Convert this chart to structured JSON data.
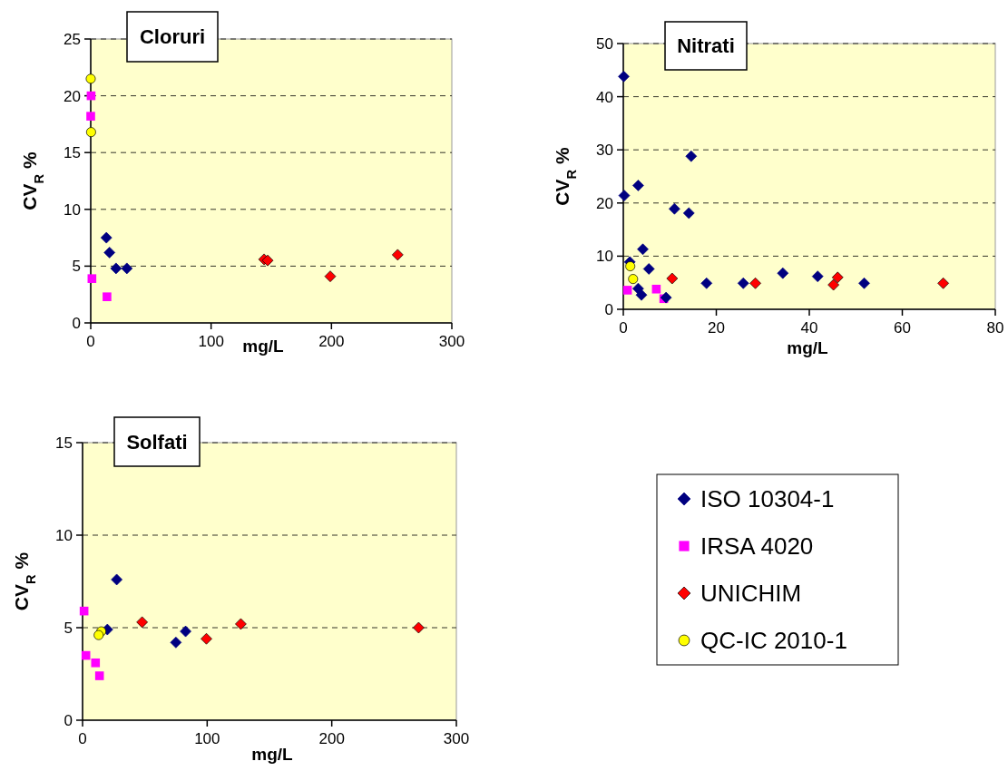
{
  "chart_data": [
    {
      "type": "scatter",
      "title": "Cloruri",
      "xlabel": "mg/L",
      "ylabel": "CV$_{R}$ %",
      "xlim": [
        0,
        300
      ],
      "xticks": [
        0,
        100,
        200,
        300
      ],
      "ylim": [
        0,
        25
      ],
      "yticks": [
        0,
        5,
        10,
        15,
        20,
        25
      ],
      "grid": "y",
      "legend": false,
      "series": [
        {
          "color": "#000080",
          "marker": "diamond",
          "x": [
            13,
            15.6,
            21,
            30
          ],
          "values": [
            7.5,
            6.2,
            4.8,
            4.8
          ]
        },
        {
          "color": "#ff00ff",
          "marker": "square",
          "x": [
            0.3,
            0,
            1,
            13.5
          ],
          "values": [
            20,
            18.2,
            3.9,
            2.3
          ]
        },
        {
          "color": "#ff0000",
          "marker": "diamond",
          "x": [
            144,
            147,
            199,
            255
          ],
          "values": [
            5.6,
            5.5,
            4.1,
            6.0
          ]
        },
        {
          "color": "#ffff00",
          "marker": "circle",
          "x": [
            0,
            0.3
          ],
          "values": [
            21.5,
            16.8
          ]
        }
      ]
    },
    {
      "type": "scatter",
      "title": "Nitrati",
      "xlabel": "mg/L",
      "ylabel": "CV$_{R}$ %",
      "xlim": [
        0,
        80
      ],
      "xticks": [
        0,
        20,
        40,
        60,
        80
      ],
      "ylim": [
        0,
        50
      ],
      "yticks": [
        0,
        10,
        20,
        30,
        40,
        50
      ],
      "grid": "y",
      "legend": false,
      "series": [
        {
          "color": "#000080",
          "marker": "diamond",
          "x": [
            0.1,
            0.2,
            3.2,
            14.6,
            11,
            14.1,
            4.2,
            1.4,
            5.5,
            3.2,
            3.9,
            9.2,
            17.9,
            25.8,
            34.3,
            41.8,
            51.8
          ],
          "values": [
            43.8,
            21.4,
            23.3,
            28.8,
            18.9,
            18.1,
            11.3,
            8.9,
            7.6,
            3.9,
            2.7,
            2.2,
            4.9,
            4.9,
            6.8,
            6.2,
            4.9
          ]
        },
        {
          "color": "#ff00ff",
          "marker": "square",
          "x": [
            0.9,
            7.1,
            8.7
          ],
          "values": [
            3.6,
            3.8,
            2.0
          ]
        },
        {
          "color": "#ff0000",
          "marker": "diamond",
          "x": [
            10.5,
            28.4,
            45.2,
            46.1,
            68.8
          ],
          "values": [
            5.8,
            4.9,
            4.6,
            6.0,
            4.9
          ]
        },
        {
          "color": "#ffff00",
          "marker": "circle",
          "x": [
            1.5,
            2.1
          ],
          "values": [
            8.1,
            5.7
          ]
        }
      ]
    },
    {
      "type": "scatter",
      "title": "Solfati",
      "xlabel": "mg/L",
      "ylabel": "CV$_{R}$ %",
      "xlim": [
        0,
        300
      ],
      "xticks": [
        0,
        100,
        200,
        300
      ],
      "ylim": [
        0,
        15
      ],
      "yticks": [
        0,
        5,
        10,
        15
      ],
      "grid": "y",
      "legend": "right",
      "series": [
        {
          "name": "ISO 10304-1",
          "color": "#000080",
          "marker": "diamond",
          "x": [
            27.4,
            19.9,
            74.9,
            82.7
          ],
          "values": [
            7.6,
            4.9,
            4.2,
            4.8
          ]
        },
        {
          "name": "IRSA 4020",
          "color": "#ff00ff",
          "marker": "square",
          "x": [
            1.2,
            2.7,
            10.4,
            13.6
          ],
          "values": [
            5.9,
            3.5,
            3.1,
            2.4
          ]
        },
        {
          "name": "UNICHIM",
          "color": "#ff0000",
          "marker": "diamond",
          "x": [
            47.8,
            99.4,
            127,
            269.7
          ],
          "values": [
            5.3,
            4.4,
            5.2,
            5.0
          ]
        },
        {
          "name": "QC-IC 2010-1",
          "color": "#ffff00",
          "marker": "circle",
          "x": [
            15,
            12.9
          ],
          "values": [
            4.8,
            4.6
          ]
        }
      ]
    }
  ]
}
